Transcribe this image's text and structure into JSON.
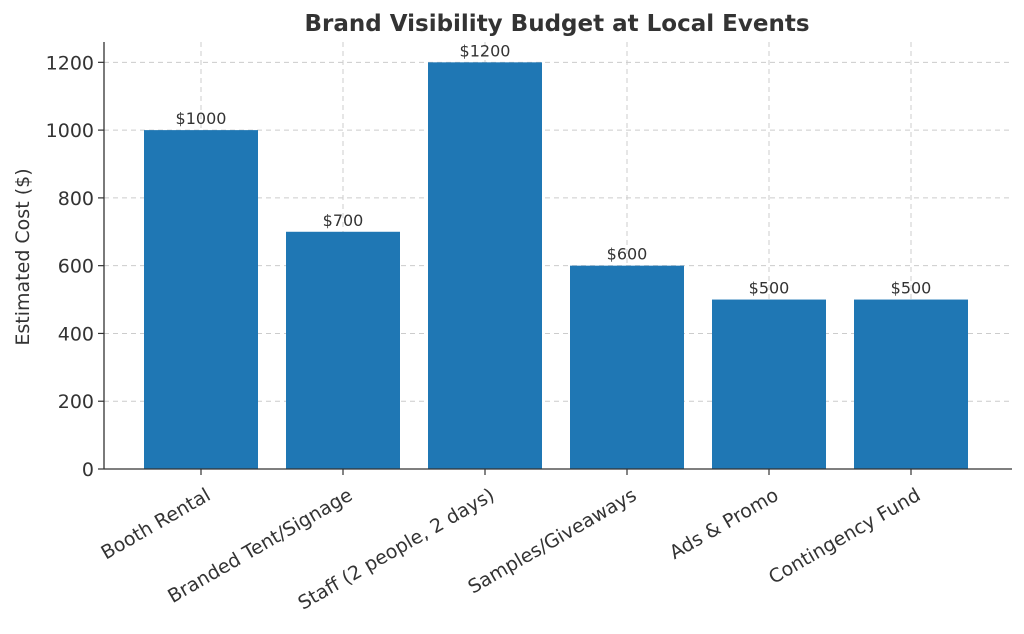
{
  "chart_data": {
    "type": "bar",
    "title": "Brand Visibility Budget at Local Events",
    "xlabel": "",
    "ylabel": "Estimated Cost ($)",
    "categories": [
      "Booth Rental",
      "Branded Tent/Signage",
      "Staff (2 people, 2 days)",
      "Samples/Giveaways",
      "Ads & Promo",
      "Contingency Fund"
    ],
    "values": [
      1000,
      700,
      1200,
      600,
      500,
      500
    ],
    "data_labels": [
      "$1000",
      "$700",
      "$1200",
      "$600",
      "$500",
      "$500"
    ],
    "yticks": [
      0,
      200,
      400,
      600,
      800,
      1000,
      1200
    ],
    "ylim": [
      0,
      1260
    ],
    "grid": true,
    "bar_color": "#1f77b4"
  }
}
